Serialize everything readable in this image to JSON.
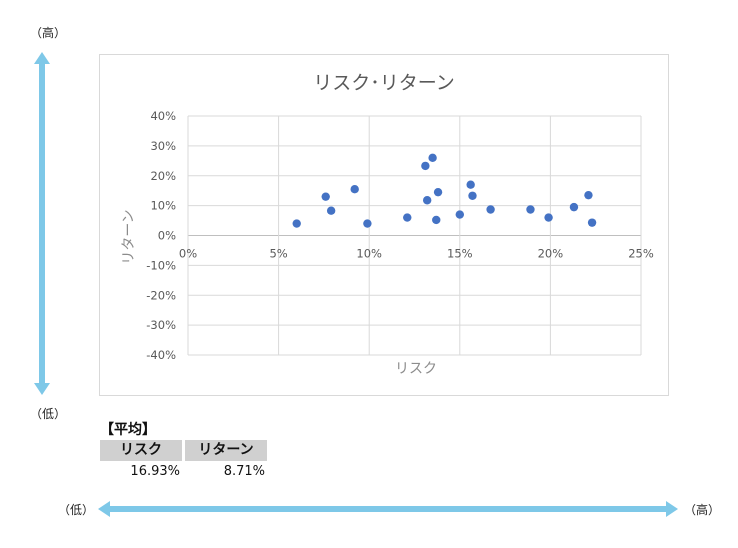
{
  "colors": {
    "arrow": "#7ec8e8",
    "point": "#4472c4",
    "grid": "#d9d9d9"
  },
  "labels": {
    "high": "（高）",
    "low": "（低）"
  },
  "average": {
    "title": "【平均】",
    "headers": [
      "リスク",
      "リターン"
    ],
    "values": [
      "16.93%",
      "8.71%"
    ]
  },
  "chart_data": {
    "type": "scatter",
    "title": "リスク･リターン",
    "xlabel": "リスク",
    "ylabel": "リターン",
    "xlim": [
      0,
      25
    ],
    "ylim": [
      -40,
      40
    ],
    "xticks": [
      "0%",
      "5%",
      "10%",
      "15%",
      "20%",
      "25%"
    ],
    "yticks": [
      "40%",
      "30%",
      "20%",
      "10%",
      "0%",
      "-10%",
      "-20%",
      "-30%",
      "-40%"
    ],
    "grid": true,
    "points": [
      {
        "x": 6.0,
        "y": 4.0
      },
      {
        "x": 7.6,
        "y": 13.0
      },
      {
        "x": 7.9,
        "y": 8.3
      },
      {
        "x": 9.2,
        "y": 15.5
      },
      {
        "x": 9.9,
        "y": 4.0
      },
      {
        "x": 12.1,
        "y": 6.0
      },
      {
        "x": 13.1,
        "y": 23.3
      },
      {
        "x": 13.2,
        "y": 11.8
      },
      {
        "x": 13.5,
        "y": 26.0
      },
      {
        "x": 13.7,
        "y": 5.2
      },
      {
        "x": 13.8,
        "y": 14.5
      },
      {
        "x": 15.0,
        "y": 7.0
      },
      {
        "x": 15.6,
        "y": 17.0
      },
      {
        "x": 15.7,
        "y": 13.3
      },
      {
        "x": 16.7,
        "y": 8.7
      },
      {
        "x": 18.9,
        "y": 8.7
      },
      {
        "x": 19.9,
        "y": 6.0
      },
      {
        "x": 21.3,
        "y": 9.5
      },
      {
        "x": 22.1,
        "y": 13.5
      },
      {
        "x": 22.3,
        "y": 4.3
      }
    ]
  }
}
